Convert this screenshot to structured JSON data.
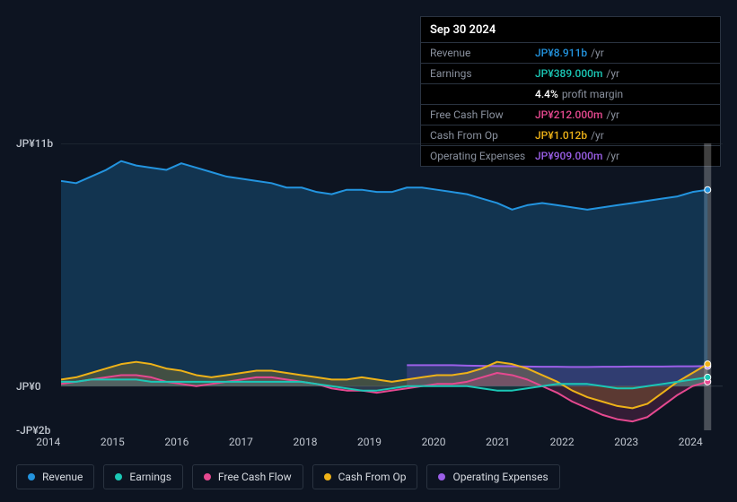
{
  "tooltip": {
    "date": "Sep 30 2024",
    "rows": [
      {
        "label": "Revenue",
        "value": "JP¥8.911b",
        "unit": "/yr",
        "color": "#2394df"
      },
      {
        "label": "Earnings",
        "value": "JP¥389.000m",
        "unit": "/yr",
        "color": "#1bc8b6"
      },
      {
        "label": "",
        "value": "4.4%",
        "unit": "profit margin",
        "color": "#ffffff"
      },
      {
        "label": "Free Cash Flow",
        "value": "JP¥212.000m",
        "unit": "/yr",
        "color": "#e64990"
      },
      {
        "label": "Cash From Op",
        "value": "JP¥1.012b",
        "unit": "/yr",
        "color": "#eeb218"
      },
      {
        "label": "Operating Expenses",
        "value": "JP¥909.000m",
        "unit": "/yr",
        "color": "#9b5fe8"
      }
    ]
  },
  "chart": {
    "type": "line",
    "background_color": "#0d1421",
    "grid_color": "#2a3340",
    "y_axis": {
      "labels": [
        {
          "text": "JP¥11b",
          "value": 11
        },
        {
          "text": "JP¥0",
          "value": 0
        },
        {
          "text": "-JP¥2b",
          "value": -2
        }
      ],
      "min": -2,
      "max": 11
    },
    "x_axis": {
      "labels": [
        "2014",
        "2015",
        "2016",
        "2017",
        "2018",
        "2019",
        "2020",
        "2021",
        "2022",
        "2023",
        "2024"
      ],
      "min": 2014,
      "max": 2025
    },
    "series": [
      {
        "name": "Revenue",
        "color": "#2394df",
        "fill": "rgba(35,148,223,0.25)",
        "line_width": 2,
        "data": [
          [
            2014,
            9.3
          ],
          [
            2014.25,
            9.2
          ],
          [
            2014.5,
            9.5
          ],
          [
            2014.75,
            9.8
          ],
          [
            2015,
            10.2
          ],
          [
            2015.25,
            10.0
          ],
          [
            2015.5,
            9.9
          ],
          [
            2015.75,
            9.8
          ],
          [
            2016,
            10.1
          ],
          [
            2016.25,
            9.9
          ],
          [
            2016.5,
            9.7
          ],
          [
            2016.75,
            9.5
          ],
          [
            2017,
            9.4
          ],
          [
            2017.25,
            9.3
          ],
          [
            2017.5,
            9.2
          ],
          [
            2017.75,
            9.0
          ],
          [
            2018,
            9.0
          ],
          [
            2018.25,
            8.8
          ],
          [
            2018.5,
            8.7
          ],
          [
            2018.75,
            8.9
          ],
          [
            2019,
            8.9
          ],
          [
            2019.25,
            8.8
          ],
          [
            2019.5,
            8.8
          ],
          [
            2019.75,
            9.0
          ],
          [
            2020,
            9.0
          ],
          [
            2020.25,
            8.9
          ],
          [
            2020.5,
            8.8
          ],
          [
            2020.75,
            8.7
          ],
          [
            2021,
            8.5
          ],
          [
            2021.25,
            8.3
          ],
          [
            2021.5,
            8.0
          ],
          [
            2021.75,
            8.2
          ],
          [
            2022,
            8.3
          ],
          [
            2022.25,
            8.2
          ],
          [
            2022.5,
            8.1
          ],
          [
            2022.75,
            8.0
          ],
          [
            2023,
            8.1
          ],
          [
            2023.25,
            8.2
          ],
          [
            2023.5,
            8.3
          ],
          [
            2023.75,
            8.4
          ],
          [
            2024,
            8.5
          ],
          [
            2024.25,
            8.6
          ],
          [
            2024.5,
            8.8
          ],
          [
            2024.75,
            8.9
          ]
        ]
      },
      {
        "name": "Cash From Op",
        "color": "#eeb218",
        "fill": "rgba(238,178,24,0.22)",
        "line_width": 2,
        "data": [
          [
            2014,
            0.3
          ],
          [
            2014.25,
            0.4
          ],
          [
            2014.5,
            0.6
          ],
          [
            2014.75,
            0.8
          ],
          [
            2015,
            1.0
          ],
          [
            2015.25,
            1.1
          ],
          [
            2015.5,
            1.0
          ],
          [
            2015.75,
            0.8
          ],
          [
            2016,
            0.7
          ],
          [
            2016.25,
            0.5
          ],
          [
            2016.5,
            0.4
          ],
          [
            2016.75,
            0.5
          ],
          [
            2017,
            0.6
          ],
          [
            2017.25,
            0.7
          ],
          [
            2017.5,
            0.7
          ],
          [
            2017.75,
            0.6
          ],
          [
            2018,
            0.5
          ],
          [
            2018.25,
            0.4
          ],
          [
            2018.5,
            0.3
          ],
          [
            2018.75,
            0.3
          ],
          [
            2019,
            0.4
          ],
          [
            2019.25,
            0.3
          ],
          [
            2019.5,
            0.2
          ],
          [
            2019.75,
            0.3
          ],
          [
            2020,
            0.4
          ],
          [
            2020.25,
            0.5
          ],
          [
            2020.5,
            0.5
          ],
          [
            2020.75,
            0.6
          ],
          [
            2021,
            0.8
          ],
          [
            2021.25,
            1.1
          ],
          [
            2021.5,
            1.0
          ],
          [
            2021.75,
            0.8
          ],
          [
            2022,
            0.5
          ],
          [
            2022.25,
            0.2
          ],
          [
            2022.5,
            -0.2
          ],
          [
            2022.75,
            -0.5
          ],
          [
            2023,
            -0.7
          ],
          [
            2023.25,
            -0.9
          ],
          [
            2023.5,
            -1.0
          ],
          [
            2023.75,
            -0.8
          ],
          [
            2024,
            -0.3
          ],
          [
            2024.25,
            0.2
          ],
          [
            2024.5,
            0.6
          ],
          [
            2024.75,
            1.0
          ]
        ]
      },
      {
        "name": "Free Cash Flow",
        "color": "#e64990",
        "fill": "rgba(230,73,144,0.18)",
        "line_width": 2,
        "data": [
          [
            2014,
            0.1
          ],
          [
            2014.25,
            0.2
          ],
          [
            2014.5,
            0.3
          ],
          [
            2014.75,
            0.4
          ],
          [
            2015,
            0.5
          ],
          [
            2015.25,
            0.5
          ],
          [
            2015.5,
            0.4
          ],
          [
            2015.75,
            0.2
          ],
          [
            2016,
            0.1
          ],
          [
            2016.25,
            0.0
          ],
          [
            2016.5,
            0.1
          ],
          [
            2016.75,
            0.2
          ],
          [
            2017,
            0.3
          ],
          [
            2017.25,
            0.4
          ],
          [
            2017.5,
            0.4
          ],
          [
            2017.75,
            0.3
          ],
          [
            2018,
            0.2
          ],
          [
            2018.25,
            0.1
          ],
          [
            2018.5,
            -0.1
          ],
          [
            2018.75,
            -0.2
          ],
          [
            2019,
            -0.2
          ],
          [
            2019.25,
            -0.3
          ],
          [
            2019.5,
            -0.2
          ],
          [
            2019.75,
            -0.1
          ],
          [
            2020,
            0.0
          ],
          [
            2020.25,
            0.1
          ],
          [
            2020.5,
            0.1
          ],
          [
            2020.75,
            0.2
          ],
          [
            2021,
            0.4
          ],
          [
            2021.25,
            0.6
          ],
          [
            2021.5,
            0.5
          ],
          [
            2021.75,
            0.3
          ],
          [
            2022,
            0.0
          ],
          [
            2022.25,
            -0.3
          ],
          [
            2022.5,
            -0.7
          ],
          [
            2022.75,
            -1.0
          ],
          [
            2023,
            -1.3
          ],
          [
            2023.25,
            -1.5
          ],
          [
            2023.5,
            -1.6
          ],
          [
            2023.75,
            -1.4
          ],
          [
            2024,
            -0.9
          ],
          [
            2024.25,
            -0.4
          ],
          [
            2024.5,
            0.0
          ],
          [
            2024.75,
            0.2
          ]
        ]
      },
      {
        "name": "Earnings",
        "color": "#1bc8b6",
        "fill": "rgba(27,200,182,0.18)",
        "line_width": 2,
        "data": [
          [
            2014,
            0.2
          ],
          [
            2014.25,
            0.2
          ],
          [
            2014.5,
            0.3
          ],
          [
            2014.75,
            0.3
          ],
          [
            2015,
            0.3
          ],
          [
            2015.25,
            0.3
          ],
          [
            2015.5,
            0.2
          ],
          [
            2015.75,
            0.2
          ],
          [
            2016,
            0.2
          ],
          [
            2016.25,
            0.2
          ],
          [
            2016.5,
            0.2
          ],
          [
            2016.75,
            0.2
          ],
          [
            2017,
            0.2
          ],
          [
            2017.25,
            0.2
          ],
          [
            2017.5,
            0.2
          ],
          [
            2017.75,
            0.2
          ],
          [
            2018,
            0.2
          ],
          [
            2018.25,
            0.1
          ],
          [
            2018.5,
            0.0
          ],
          [
            2018.75,
            -0.1
          ],
          [
            2019,
            -0.2
          ],
          [
            2019.25,
            -0.2
          ],
          [
            2019.5,
            -0.1
          ],
          [
            2019.75,
            0.0
          ],
          [
            2020,
            0.0
          ],
          [
            2020.25,
            0.0
          ],
          [
            2020.5,
            0.0
          ],
          [
            2020.75,
            0.0
          ],
          [
            2021,
            -0.1
          ],
          [
            2021.25,
            -0.2
          ],
          [
            2021.5,
            -0.2
          ],
          [
            2021.75,
            -0.1
          ],
          [
            2022,
            0.0
          ],
          [
            2022.25,
            0.1
          ],
          [
            2022.5,
            0.1
          ],
          [
            2022.75,
            0.1
          ],
          [
            2023,
            0.0
          ],
          [
            2023.25,
            -0.1
          ],
          [
            2023.5,
            -0.1
          ],
          [
            2023.75,
            0.0
          ],
          [
            2024,
            0.1
          ],
          [
            2024.25,
            0.2
          ],
          [
            2024.5,
            0.3
          ],
          [
            2024.75,
            0.4
          ]
        ]
      },
      {
        "name": "Operating Expenses",
        "color": "#9b5fe8",
        "fill": "rgba(155,95,232,0.22)",
        "line_width": 2,
        "data": [
          [
            2019.75,
            0.95
          ],
          [
            2020,
            0.95
          ],
          [
            2020.25,
            0.95
          ],
          [
            2020.5,
            0.95
          ],
          [
            2020.75,
            0.93
          ],
          [
            2021,
            0.92
          ],
          [
            2021.25,
            0.91
          ],
          [
            2021.5,
            0.9
          ],
          [
            2021.75,
            0.89
          ],
          [
            2022,
            0.88
          ],
          [
            2022.25,
            0.88
          ],
          [
            2022.5,
            0.87
          ],
          [
            2022.75,
            0.87
          ],
          [
            2023,
            0.88
          ],
          [
            2023.25,
            0.88
          ],
          [
            2023.5,
            0.89
          ],
          [
            2023.75,
            0.89
          ],
          [
            2024,
            0.89
          ],
          [
            2024.25,
            0.9
          ],
          [
            2024.5,
            0.9
          ],
          [
            2024.75,
            0.91
          ]
        ]
      }
    ],
    "legend": [
      {
        "label": "Revenue",
        "color": "#2394df"
      },
      {
        "label": "Earnings",
        "color": "#1bc8b6"
      },
      {
        "label": "Free Cash Flow",
        "color": "#e64990"
      },
      {
        "label": "Cash From Op",
        "color": "#eeb218"
      },
      {
        "label": "Operating Expenses",
        "color": "#9b5fe8"
      }
    ]
  }
}
